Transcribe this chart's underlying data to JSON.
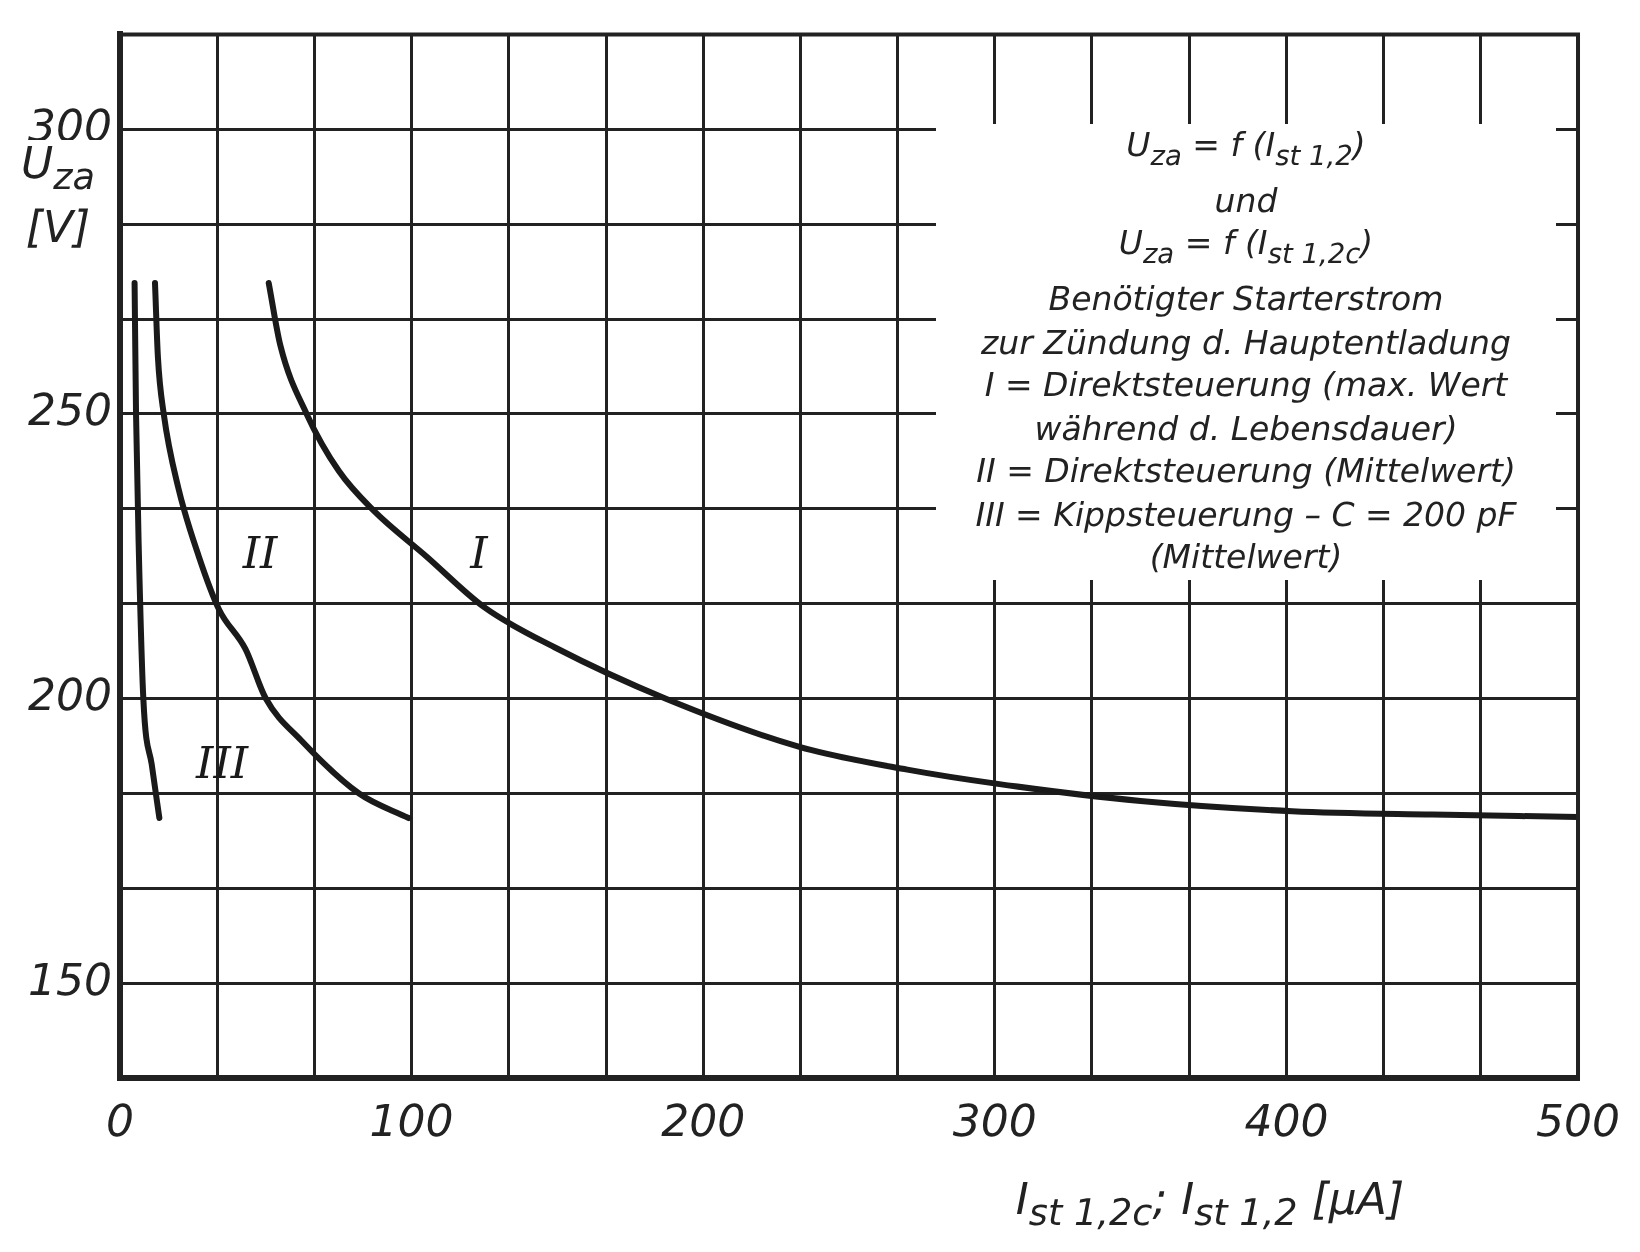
{
  "chart_data": {
    "type": "line",
    "xlabel": "I$_{st 1,2c}$; I$_{st 1,2}$ [µA]",
    "ylabel": "U$_{za}$ [V]",
    "xlim": [
      0,
      500
    ],
    "ylim": [
      133.33,
      316.67
    ],
    "xticks": [
      0,
      {
        "value": 33.33,
        "label": null
      },
      {
        "value": 66.67,
        "label": null
      },
      100,
      {
        "value": 133.33,
        "label": null
      },
      {
        "value": 166.67,
        "label": null
      },
      200,
      {
        "value": 233.33,
        "label": null
      },
      {
        "value": 266.67,
        "label": null
      },
      300,
      {
        "value": 333.33,
        "label": null
      },
      {
        "value": 366.67,
        "label": null
      },
      400,
      {
        "value": 433.33,
        "label": null
      },
      {
        "value": 466.67,
        "label": null
      },
      500
    ],
    "yticks": [
      {
        "value": 133.33,
        "label": null
      },
      150,
      {
        "value": 166.67,
        "label": null
      },
      {
        "value": 183.33,
        "label": null
      },
      200,
      {
        "value": 216.67,
        "label": null
      },
      {
        "value": 233.33,
        "label": null
      },
      250,
      {
        "value": 266.67,
        "label": null
      },
      {
        "value": 283.33,
        "label": null
      },
      300,
      {
        "value": 316.67,
        "label": null
      }
    ],
    "grid": true,
    "legend": false,
    "marker": "none",
    "line_style": "solid",
    "series": [
      {
        "name": "I",
        "color": "#1a1a1a",
        "x": [
          51,
          55,
          64,
          75,
          87,
          105,
          125,
          149,
          187,
          233,
          270,
          301,
          350,
          402,
          450,
          500
        ],
        "values": [
          273,
          262,
          250,
          240,
          233,
          225,
          216,
          209,
          200,
          191.5,
          187.5,
          185,
          182,
          180.2,
          179.6,
          179.2
        ]
      },
      {
        "name": "II",
        "color": "#1a1a1a",
        "x": [
          12,
          13,
          15,
          20,
          27,
          34,
          43,
          50,
          62,
          82,
          99
        ],
        "values": [
          273,
          260,
          250,
          237,
          225,
          215.6,
          208.7,
          200,
          192.7,
          183.3,
          179
        ]
      },
      {
        "name": "III",
        "color": "#1a1a1a",
        "x": [
          5,
          5.5,
          6.5,
          8,
          11,
          13.5
        ],
        "values": [
          273,
          250,
          225,
          200,
          188,
          179
        ]
      }
    ],
    "annotations": [
      "U$_{za}$ = f (I$_{st 1,2}$)",
      "und",
      "U$_{za}$ = f (I$_{st 1,2c}$)",
      "Benötigter Starterstrom",
      "zur Zündung d. Hauptentladung",
      "I = Direktsteuerung (max. Wert",
      "während d. Lebensdauer)",
      "II = Direktsteuerung (Mittelwert)",
      "III = Kippsteuerung – C = 200 pF",
      "(Mittelwert)"
    ]
  }
}
